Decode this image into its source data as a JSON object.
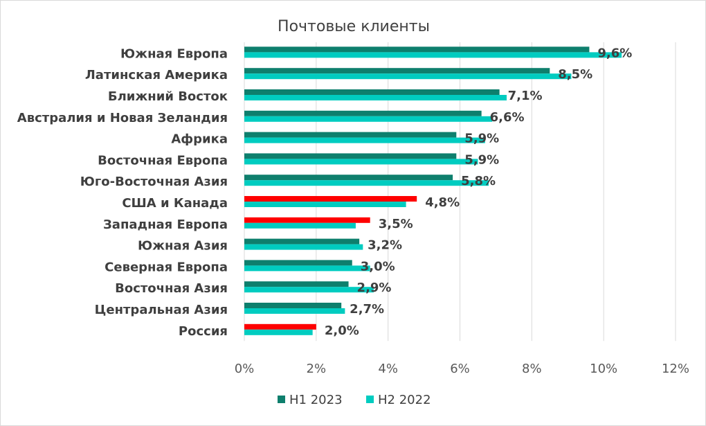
{
  "chart_data": {
    "type": "bar",
    "orientation": "horizontal",
    "title": "Почтовые клиенты",
    "categories": [
      "Южная Европа",
      "Латинская Америка",
      "Ближний Восток",
      "Австралия и Новая Зеландия",
      "Африка",
      "Восточная Европа",
      "Юго-Восточная Азия",
      "США и Канада",
      "Западная Европа",
      "Южная Азия",
      "Северная Европа",
      "Восточная Азия",
      "Центральная Азия",
      "Россия"
    ],
    "series": [
      {
        "name": "H1 2023",
        "color": "#0e7f6d",
        "values": [
          9.6,
          8.5,
          7.1,
          6.6,
          5.9,
          5.9,
          5.8,
          4.8,
          3.5,
          3.2,
          3.0,
          2.9,
          2.7,
          2.0
        ],
        "highlight_color": "#ff0000",
        "highlight_categories": [
          "США и Канада",
          "Западная Европа",
          "Россия"
        ]
      },
      {
        "name": "H2 2022",
        "color": "#00ccc0",
        "values": [
          10.5,
          9.1,
          7.3,
          6.9,
          6.7,
          6.5,
          6.8,
          4.5,
          3.1,
          3.3,
          3.5,
          3.6,
          2.8,
          1.9
        ]
      }
    ],
    "data_labels": [
      "9,6%",
      "8,5%",
      "7,1%",
      "6,6%",
      "5,9%",
      "5,9%",
      "5,8%",
      "4,8%",
      "3,5%",
      "3,2%",
      "3,0%",
      "2,9%",
      "2,7%",
      "2,0%"
    ],
    "x_ticks": [
      "0%",
      "2%",
      "4%",
      "6%",
      "8%",
      "10%",
      "12%"
    ],
    "xlim": [
      0,
      12
    ],
    "grid": "vertical",
    "legend_position": "bottom"
  }
}
